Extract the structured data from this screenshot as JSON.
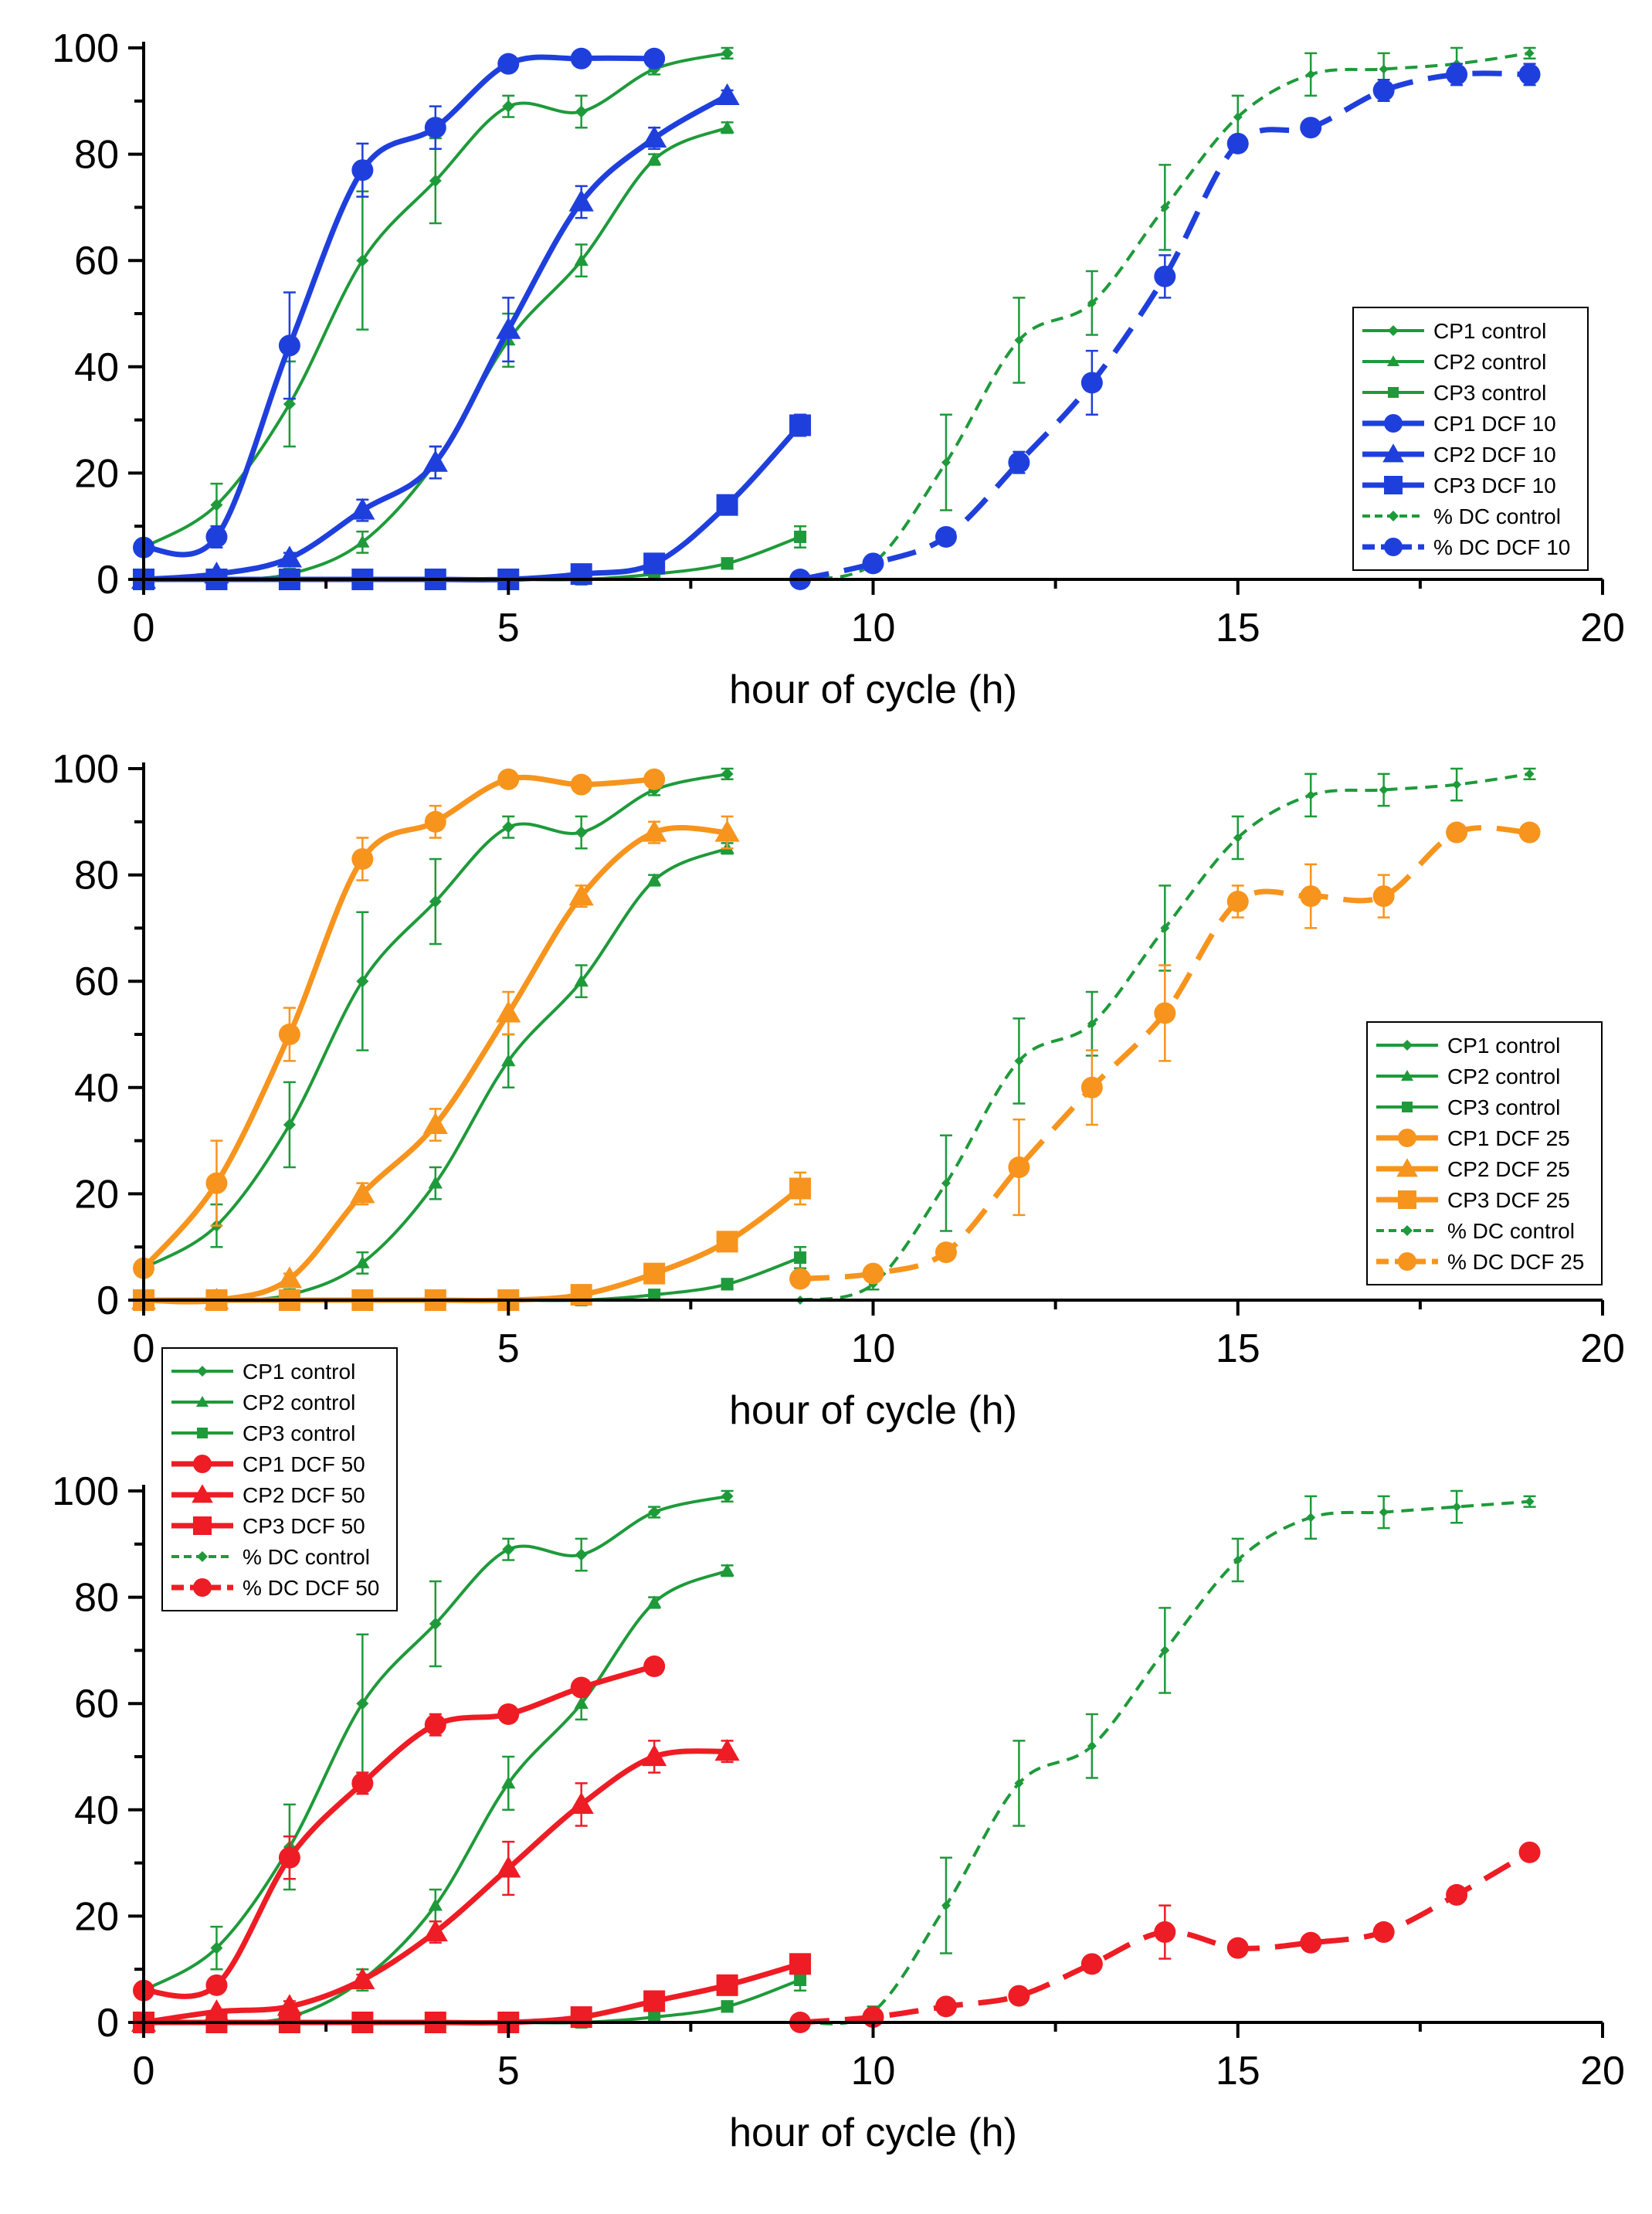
{
  "colors": {
    "control": "#1e9a3a",
    "axis": "#000000",
    "background": "#ffffff"
  },
  "chart_data": [
    {
      "type": "line",
      "title": "",
      "xlabel": "hour of cycle (h)",
      "ylabel": "",
      "xlim": [
        0,
        20
      ],
      "ylim": [
        0,
        100
      ],
      "xticks": [
        0,
        5,
        10,
        15,
        20
      ],
      "yticks": [
        0,
        20,
        40,
        60,
        80,
        100
      ],
      "grid": false,
      "legend_position": "center-right",
      "treatment_color": "#1f3fdd",
      "series": [
        {
          "name": "CP1 control",
          "group": "control",
          "marker": "diamond",
          "dash": false,
          "x": [
            0,
            1,
            2,
            3,
            4,
            5,
            6,
            7,
            8
          ],
          "y": [
            6,
            14,
            33,
            60,
            75,
            89,
            88,
            96,
            99
          ],
          "err": [
            1,
            4,
            8,
            13,
            8,
            2,
            3,
            1,
            1
          ]
        },
        {
          "name": "CP2 control",
          "group": "control",
          "marker": "triangle",
          "dash": false,
          "x": [
            0,
            1,
            2,
            3,
            4,
            5,
            6,
            7,
            8
          ],
          "y": [
            0,
            0,
            1,
            7,
            22,
            45,
            60,
            79,
            85
          ],
          "err": [
            0,
            0,
            1,
            2,
            3,
            5,
            3,
            1,
            1
          ]
        },
        {
          "name": "CP3 control",
          "group": "control",
          "marker": "square",
          "dash": false,
          "x": [
            0,
            1,
            2,
            3,
            4,
            5,
            6,
            7,
            8,
            9
          ],
          "y": [
            0,
            0,
            0,
            0,
            0,
            0,
            0,
            1,
            3,
            8
          ],
          "err": [
            0,
            0,
            0,
            0,
            0,
            0,
            0,
            0,
            1,
            2
          ]
        },
        {
          "name": "CP1 DCF 10",
          "group": "treat",
          "marker": "circle",
          "dash": false,
          "x": [
            0,
            1,
            2,
            3,
            4,
            5,
            6,
            7
          ],
          "y": [
            6,
            8,
            44,
            77,
            85,
            97,
            98,
            98
          ],
          "err": [
            1,
            2,
            10,
            5,
            4,
            1,
            1,
            1
          ]
        },
        {
          "name": "CP2 DCF 10",
          "group": "treat",
          "marker": "triangle",
          "dash": false,
          "x": [
            0,
            1,
            2,
            3,
            4,
            5,
            6,
            7,
            8
          ],
          "y": [
            0,
            1,
            4,
            13,
            22,
            47,
            71,
            83,
            91
          ],
          "err": [
            0,
            0,
            1,
            2,
            3,
            6,
            3,
            2,
            1
          ]
        },
        {
          "name": "CP3 DCF 10",
          "group": "treat",
          "marker": "square",
          "dash": false,
          "x": [
            0,
            1,
            2,
            3,
            4,
            5,
            6,
            7,
            8,
            9
          ],
          "y": [
            0,
            0,
            0,
            0,
            0,
            0,
            1,
            3,
            14,
            29
          ],
          "err": [
            0,
            0,
            0,
            0,
            0,
            0,
            0,
            1,
            1,
            2
          ]
        },
        {
          "name": "% DC control",
          "group": "control",
          "marker": "diamond",
          "dash": true,
          "x": [
            9,
            10,
            11,
            12,
            13,
            14,
            15,
            16,
            17,
            18,
            19
          ],
          "y": [
            0,
            3,
            22,
            45,
            52,
            70,
            87,
            95,
            96,
            97,
            99
          ],
          "err": [
            0,
            1,
            9,
            8,
            6,
            8,
            4,
            4,
            3,
            3,
            1
          ]
        },
        {
          "name": "% DC DCF 10",
          "group": "treat",
          "marker": "circle",
          "dash": true,
          "x": [
            9,
            10,
            11,
            12,
            13,
            14,
            15,
            16,
            17,
            18,
            19
          ],
          "y": [
            0,
            3,
            8,
            22,
            37,
            57,
            82,
            85,
            92,
            95,
            95
          ],
          "err": [
            0,
            1,
            1,
            2,
            6,
            4,
            1,
            1,
            2,
            2,
            2
          ]
        }
      ]
    },
    {
      "type": "line",
      "title": "",
      "xlabel": "hour of cycle (h)",
      "ylabel": "",
      "xlim": [
        0,
        20
      ],
      "ylim": [
        0,
        100
      ],
      "xticks": [
        0,
        5,
        10,
        15,
        20
      ],
      "yticks": [
        0,
        20,
        40,
        60,
        80,
        100
      ],
      "grid": false,
      "legend_position": "bottom-right",
      "treatment_color": "#f7941d",
      "series": [
        {
          "name": "CP1 control",
          "group": "control",
          "marker": "diamond",
          "dash": false,
          "x": [
            0,
            1,
            2,
            3,
            4,
            5,
            6,
            7,
            8
          ],
          "y": [
            6,
            14,
            33,
            60,
            75,
            89,
            88,
            96,
            99
          ],
          "err": [
            1,
            4,
            8,
            13,
            8,
            2,
            3,
            1,
            1
          ]
        },
        {
          "name": "CP2 control",
          "group": "control",
          "marker": "triangle",
          "dash": false,
          "x": [
            0,
            1,
            2,
            3,
            4,
            5,
            6,
            7,
            8
          ],
          "y": [
            0,
            0,
            1,
            7,
            22,
            45,
            60,
            79,
            85
          ],
          "err": [
            0,
            0,
            1,
            2,
            3,
            5,
            3,
            1,
            1
          ]
        },
        {
          "name": "CP3 control",
          "group": "control",
          "marker": "square",
          "dash": false,
          "x": [
            0,
            1,
            2,
            3,
            4,
            5,
            6,
            7,
            8,
            9
          ],
          "y": [
            0,
            0,
            0,
            0,
            0,
            0,
            0,
            1,
            3,
            8
          ],
          "err": [
            0,
            0,
            0,
            0,
            0,
            0,
            0,
            0,
            1,
            2
          ]
        },
        {
          "name": "CP1 DCF 25",
          "group": "treat",
          "marker": "circle",
          "dash": false,
          "x": [
            0,
            1,
            2,
            3,
            4,
            5,
            6,
            7
          ],
          "y": [
            6,
            22,
            50,
            83,
            90,
            98,
            97,
            98
          ],
          "err": [
            1,
            8,
            5,
            4,
            3,
            1,
            1,
            1
          ]
        },
        {
          "name": "CP2 DCF 25",
          "group": "treat",
          "marker": "triangle",
          "dash": false,
          "x": [
            0,
            1,
            2,
            3,
            4,
            5,
            6,
            7,
            8
          ],
          "y": [
            0,
            0,
            4,
            20,
            33,
            54,
            76,
            88,
            88
          ],
          "err": [
            0,
            0,
            1,
            2,
            3,
            4,
            2,
            2,
            3
          ]
        },
        {
          "name": "CP3 DCF 25",
          "group": "treat",
          "marker": "square",
          "dash": false,
          "x": [
            0,
            1,
            2,
            3,
            4,
            5,
            6,
            7,
            8,
            9
          ],
          "y": [
            0,
            0,
            0,
            0,
            0,
            0,
            1,
            5,
            11,
            21
          ],
          "err": [
            0,
            0,
            0,
            0,
            0,
            0,
            0,
            1,
            1,
            3
          ]
        },
        {
          "name": "% DC control",
          "group": "control",
          "marker": "diamond",
          "dash": true,
          "x": [
            9,
            10,
            11,
            12,
            13,
            14,
            15,
            16,
            17,
            18,
            19
          ],
          "y": [
            0,
            3,
            22,
            45,
            52,
            70,
            87,
            95,
            96,
            97,
            99
          ],
          "err": [
            0,
            1,
            9,
            8,
            6,
            8,
            4,
            4,
            3,
            3,
            1
          ]
        },
        {
          "name": "% DC DCF 25",
          "group": "treat",
          "marker": "circle",
          "dash": true,
          "x": [
            9,
            10,
            11,
            12,
            13,
            14,
            15,
            16,
            17,
            18,
            19
          ],
          "y": [
            4,
            5,
            9,
            25,
            40,
            54,
            75,
            76,
            76,
            88,
            88
          ],
          "err": [
            1,
            1,
            1,
            9,
            7,
            9,
            3,
            6,
            4,
            1,
            1
          ]
        }
      ]
    },
    {
      "type": "line",
      "title": "",
      "xlabel": "hour of cycle (h)",
      "ylabel": "",
      "xlim": [
        0,
        20
      ],
      "ylim": [
        0,
        100
      ],
      "xticks": [
        0,
        5,
        10,
        15,
        20
      ],
      "yticks": [
        0,
        20,
        40,
        60,
        80,
        100
      ],
      "grid": false,
      "legend_position": "top-left",
      "treatment_color": "#ee1c24",
      "series": [
        {
          "name": "CP1 control",
          "group": "control",
          "marker": "diamond",
          "dash": false,
          "x": [
            0,
            1,
            2,
            3,
            4,
            5,
            6,
            7,
            8
          ],
          "y": [
            6,
            14,
            33,
            60,
            75,
            89,
            88,
            96,
            99
          ],
          "err": [
            1,
            4,
            8,
            13,
            8,
            2,
            3,
            1,
            1
          ]
        },
        {
          "name": "CP2 control",
          "group": "control",
          "marker": "triangle",
          "dash": false,
          "x": [
            0,
            1,
            2,
            3,
            4,
            5,
            6,
            7,
            8
          ],
          "y": [
            0,
            0,
            1,
            8,
            22,
            45,
            60,
            79,
            85
          ],
          "err": [
            0,
            0,
            1,
            2,
            3,
            5,
            3,
            1,
            1
          ]
        },
        {
          "name": "CP3 control",
          "group": "control",
          "marker": "square",
          "dash": false,
          "x": [
            0,
            1,
            2,
            3,
            4,
            5,
            6,
            7,
            8,
            9
          ],
          "y": [
            0,
            0,
            0,
            0,
            0,
            0,
            0,
            1,
            3,
            8
          ],
          "err": [
            0,
            0,
            0,
            0,
            0,
            0,
            0,
            0,
            1,
            2
          ]
        },
        {
          "name": "CP1 DCF 50",
          "group": "treat",
          "marker": "circle",
          "dash": false,
          "x": [
            0,
            1,
            2,
            3,
            4,
            5,
            6,
            7
          ],
          "y": [
            6,
            7,
            31,
            45,
            56,
            58,
            63,
            67
          ],
          "err": [
            1,
            1,
            4,
            2,
            2,
            1,
            1,
            1
          ]
        },
        {
          "name": "CP2 DCF 50",
          "group": "treat",
          "marker": "triangle",
          "dash": false,
          "x": [
            0,
            1,
            2,
            3,
            4,
            5,
            6,
            7,
            8
          ],
          "y": [
            0,
            2,
            3,
            8,
            17,
            29,
            41,
            50,
            51
          ],
          "err": [
            0,
            0,
            1,
            1,
            2,
            5,
            4,
            3,
            2
          ]
        },
        {
          "name": "CP3 DCF 50",
          "group": "treat",
          "marker": "square",
          "dash": false,
          "x": [
            0,
            1,
            2,
            3,
            4,
            5,
            6,
            7,
            8,
            9
          ],
          "y": [
            0,
            0,
            0,
            0,
            0,
            0,
            1,
            4,
            7,
            11
          ],
          "err": [
            0,
            0,
            0,
            0,
            0,
            0,
            0,
            1,
            1,
            1
          ]
        },
        {
          "name": "% DC control",
          "group": "control",
          "marker": "diamond",
          "dash": true,
          "x": [
            9,
            10,
            11,
            12,
            13,
            14,
            15,
            16,
            17,
            18,
            19
          ],
          "y": [
            0,
            2,
            22,
            45,
            52,
            70,
            87,
            95,
            96,
            97,
            98
          ],
          "err": [
            0,
            1,
            9,
            8,
            6,
            8,
            4,
            4,
            3,
            3,
            1
          ]
        },
        {
          "name": "% DC DCF 50",
          "group": "treat",
          "marker": "circle",
          "dash": true,
          "x": [
            9,
            10,
            11,
            12,
            13,
            14,
            15,
            16,
            17,
            18,
            19
          ],
          "y": [
            0,
            1,
            3,
            5,
            11,
            17,
            14,
            15,
            17,
            24,
            32
          ],
          "err": [
            0,
            0,
            1,
            1,
            1,
            5,
            1,
            1,
            1,
            1,
            1
          ]
        }
      ]
    }
  ]
}
